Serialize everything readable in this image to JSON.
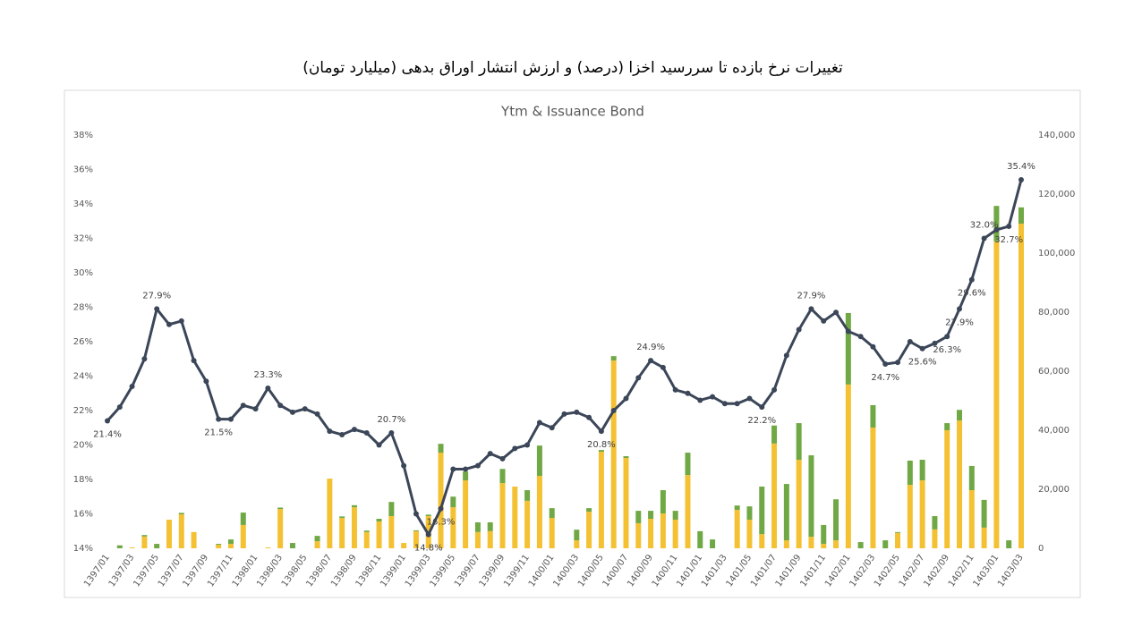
{
  "header": {
    "title": "تغییرات نرخ بازده تا سررسید اخزا (درصد) و ارزش انتشار اوراق بدهی (میلیارد تومان)"
  },
  "chart_data": {
    "type": "bar",
    "title": "Ytm & Issuance Bond",
    "stacked": true,
    "grid": false,
    "categories": [
      "1397/01",
      null,
      "1397/03",
      null,
      "1397/05",
      null,
      "1397/07",
      null,
      "1397/09",
      null,
      "1397/11",
      null,
      "1398/01",
      null,
      "1398/03",
      null,
      "1398/05",
      null,
      "1398/07",
      null,
      "1398/09",
      null,
      "1398/11",
      null,
      "1399/01",
      null,
      "1399/03",
      null,
      "1399/05",
      null,
      "1399/07",
      null,
      "1399/09",
      null,
      "1399/11",
      null,
      "1400/01",
      null,
      "1400/03",
      null,
      "1400/05",
      null,
      "1400/07",
      null,
      "1400/09",
      null,
      "1400/11",
      null,
      "1401/01",
      null,
      "1401/03",
      null,
      "1401/05",
      null,
      "1401/07",
      null,
      "1401/09",
      null,
      "1401/11",
      null,
      "1402/01",
      null,
      "1402/03",
      null,
      "1402/05",
      null,
      "1402/07",
      null,
      "1402/09",
      null,
      "1402/11",
      null,
      "1403/01",
      null,
      "1403/03"
    ],
    "ylim": [
      14,
      38
    ],
    "yticks": [
      {
        "value": 14,
        "label": "14%"
      },
      {
        "value": 16,
        "label": "16%"
      },
      {
        "value": 18,
        "label": "18%"
      },
      {
        "value": 20,
        "label": "20%"
      },
      {
        "value": 22,
        "label": "22%"
      },
      {
        "value": 24,
        "label": "24%"
      },
      {
        "value": 26,
        "label": "26%"
      },
      {
        "value": 28,
        "label": "28%"
      },
      {
        "value": 30,
        "label": "30%"
      },
      {
        "value": 32,
        "label": "32%"
      },
      {
        "value": 34,
        "label": "34%"
      },
      {
        "value": 36,
        "label": "36%"
      },
      {
        "value": 38,
        "label": "38%"
      }
    ],
    "y2lim": [
      0,
      140000
    ],
    "y2ticks": [
      0,
      {
        "value": 20000,
        "label": "20,000"
      },
      {
        "value": 40000,
        "label": "40,000"
      },
      {
        "value": 60000,
        "label": "60,000"
      },
      {
        "value": 80000,
        "label": "80,000"
      },
      {
        "value": 100000,
        "label": "100,000"
      },
      {
        "value": 120000,
        "label": "120,000"
      },
      {
        "value": 140000,
        "label": "140,000"
      }
    ],
    "series": [
      {
        "type": "bar",
        "axis": "y2",
        "color": "#f4c133",
        "values": [
          0,
          0,
          300,
          4000,
          0,
          9700,
          11500,
          5500,
          0,
          1200,
          1500,
          7900,
          0,
          300,
          13300,
          0,
          0,
          2400,
          23600,
          10300,
          13900,
          5500,
          9100,
          10900,
          1800,
          5800,
          10900,
          32400,
          13900,
          23000,
          5500,
          5800,
          22100,
          20900,
          16100,
          24500,
          10300,
          0,
          2700,
          12400,
          32700,
          63600,
          30600,
          8500,
          10000,
          11800,
          9700,
          24800,
          0,
          0,
          0,
          13000,
          9700,
          4800,
          35500,
          2700,
          30000,
          3900,
          1500,
          2700,
          55500,
          0,
          40900,
          0,
          5200,
          21500,
          23000,
          6400,
          40000,
          43300,
          19700,
          7000,
          104000,
          0,
          110000
        ]
      },
      {
        "type": "bar",
        "axis": "y2",
        "color": "#70a845",
        "values": [
          0,
          1000,
          0,
          500,
          1500,
          0,
          500,
          0,
          0,
          300,
          1500,
          4200,
          0,
          0,
          500,
          1800,
          0,
          1800,
          0,
          500,
          700,
          500,
          900,
          4800,
          0,
          300,
          500,
          3000,
          3600,
          3000,
          3300,
          3000,
          4800,
          0,
          3600,
          10300,
          3300,
          0,
          3600,
          1200,
          600,
          1500,
          600,
          4200,
          2700,
          7900,
          3000,
          7600,
          5800,
          3000,
          0,
          1500,
          4500,
          16100,
          6100,
          19100,
          12400,
          27600,
          6400,
          13900,
          24200,
          2100,
          7600,
          2700,
          300,
          8200,
          7000,
          4500,
          2400,
          3600,
          8200,
          9400,
          12000,
          2700,
          5500
        ]
      },
      {
        "type": "line",
        "axis": "y",
        "color": "#3b4658",
        "values": [
          21.4,
          22.2,
          23.4,
          25.0,
          27.9,
          27.0,
          27.2,
          24.9,
          23.7,
          21.5,
          21.5,
          22.3,
          22.1,
          23.3,
          22.3,
          21.9,
          22.1,
          21.8,
          20.8,
          20.6,
          20.9,
          20.7,
          20.0,
          20.7,
          18.8,
          16.0,
          14.8,
          16.3,
          18.6,
          18.6,
          18.8,
          19.5,
          19.2,
          19.8,
          20.0,
          21.3,
          21.0,
          21.8,
          21.9,
          21.6,
          20.8,
          22.0,
          22.7,
          23.9,
          24.9,
          24.5,
          23.2,
          23.0,
          22.6,
          22.8,
          22.4,
          22.4,
          22.7,
          22.2,
          23.2,
          25.2,
          26.7,
          27.9,
          27.2,
          27.7,
          26.6,
          26.3,
          25.7,
          24.7,
          24.8,
          26.0,
          25.6,
          25.9,
          26.3,
          27.9,
          29.6,
          32.0,
          32.5,
          32.7,
          35.4
        ],
        "value_labels": [
          "21.4%",
          null,
          null,
          null,
          "27.9%",
          null,
          null,
          null,
          null,
          "21.5%",
          null,
          null,
          null,
          "23.3%",
          null,
          null,
          null,
          null,
          null,
          null,
          null,
          null,
          null,
          "20.7%",
          null,
          null,
          "14.8%",
          "16.3%",
          null,
          null,
          null,
          null,
          null,
          null,
          null,
          null,
          null,
          null,
          null,
          null,
          "20.8%",
          null,
          null,
          null,
          "24.9%",
          null,
          null,
          null,
          null,
          null,
          null,
          null,
          null,
          "22.2%",
          null,
          null,
          null,
          "27.9%",
          null,
          null,
          null,
          null,
          null,
          "24.7%",
          null,
          null,
          "25.6%",
          null,
          "26.3%",
          "27.9%",
          "29.6%",
          "32.0%",
          null,
          "32.7%",
          "35.4%"
        ]
      }
    ]
  }
}
